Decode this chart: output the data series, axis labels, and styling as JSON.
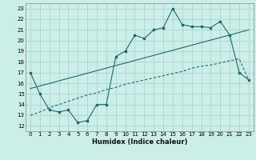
{
  "xlabel": "Humidex (Indice chaleur)",
  "background_color": "#cceee8",
  "grid_color": "#aad4cc",
  "line_color": "#1a6b6b",
  "xlim": [
    -0.5,
    23.5
  ],
  "ylim": [
    11.5,
    23.5
  ],
  "yticks": [
    12,
    13,
    14,
    15,
    16,
    17,
    18,
    19,
    20,
    21,
    22,
    23
  ],
  "xticks": [
    0,
    1,
    2,
    3,
    4,
    5,
    6,
    7,
    8,
    9,
    10,
    11,
    12,
    13,
    14,
    15,
    16,
    17,
    18,
    19,
    20,
    21,
    22,
    23
  ],
  "series1_x": [
    0,
    1,
    2,
    3,
    4,
    5,
    6,
    7,
    8,
    9,
    10,
    11,
    12,
    13,
    14,
    15,
    16,
    17,
    18,
    19,
    20,
    21,
    22,
    23
  ],
  "series1_y": [
    17.0,
    15.0,
    13.5,
    13.3,
    13.5,
    12.3,
    12.5,
    14.0,
    14.0,
    18.5,
    19.0,
    20.5,
    20.2,
    21.0,
    21.2,
    23.0,
    21.5,
    21.3,
    21.3,
    21.2,
    21.8,
    20.5,
    17.0,
    16.3
  ],
  "series2_x": [
    0,
    23
  ],
  "series2_y": [
    15.5,
    21.0
  ],
  "series3_x": [
    0,
    1,
    2,
    3,
    4,
    5,
    6,
    7,
    8,
    9,
    10,
    11,
    12,
    13,
    14,
    15,
    16,
    17,
    18,
    19,
    20,
    21,
    22,
    23
  ],
  "series3_y": [
    13.0,
    13.3,
    13.7,
    14.0,
    14.3,
    14.6,
    14.9,
    15.1,
    15.4,
    15.6,
    15.9,
    16.1,
    16.3,
    16.5,
    16.7,
    16.9,
    17.1,
    17.4,
    17.6,
    17.7,
    17.9,
    18.1,
    18.3,
    16.3
  ]
}
